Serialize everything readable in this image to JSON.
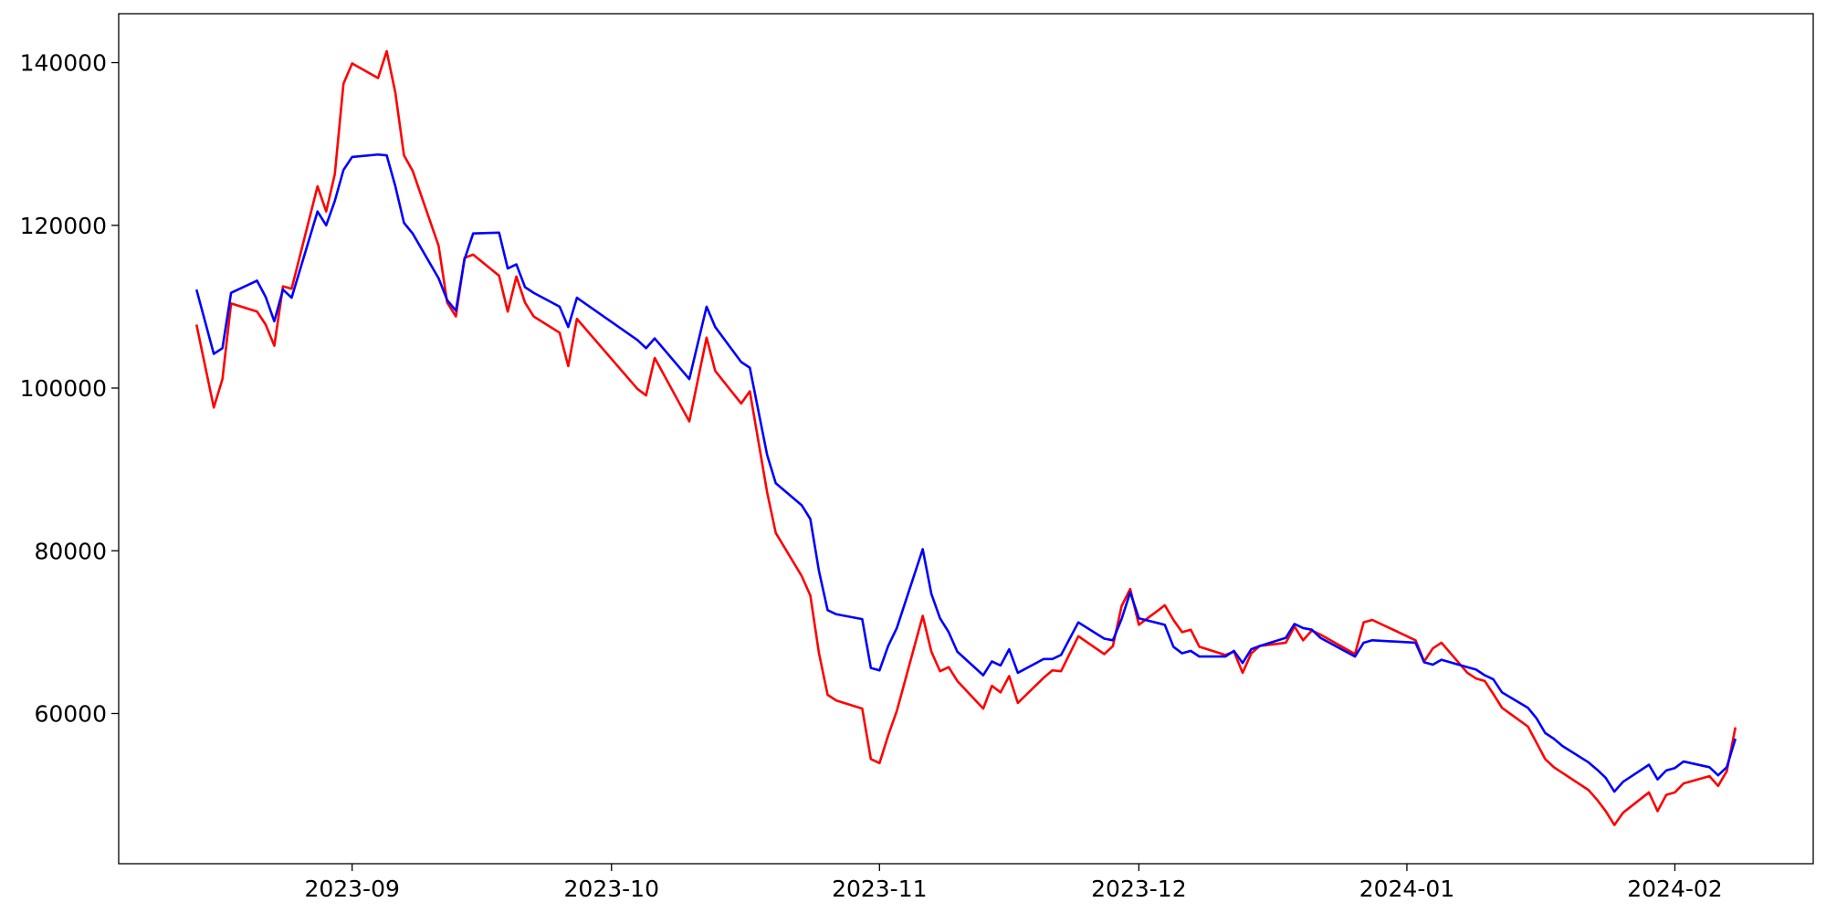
{
  "chart_data": {
    "type": "line",
    "x": [
      "2023-08-14",
      "2023-08-16",
      "2023-08-17",
      "2023-08-18",
      "2023-08-21",
      "2023-08-22",
      "2023-08-23",
      "2023-08-24",
      "2023-08-25",
      "2023-08-28",
      "2023-08-29",
      "2023-08-30",
      "2023-08-31",
      "2023-09-01",
      "2023-09-04",
      "2023-09-05",
      "2023-09-06",
      "2023-09-07",
      "2023-09-08",
      "2023-09-11",
      "2023-09-12",
      "2023-09-13",
      "2023-09-14",
      "2023-09-15",
      "2023-09-18",
      "2023-09-19",
      "2023-09-20",
      "2023-09-21",
      "2023-09-22",
      "2023-09-25",
      "2023-09-26",
      "2023-09-27",
      "2023-10-04",
      "2023-10-05",
      "2023-10-06",
      "2023-10-10",
      "2023-10-12",
      "2023-10-13",
      "2023-10-16",
      "2023-10-17",
      "2023-10-19",
      "2023-10-20",
      "2023-10-23",
      "2023-10-24",
      "2023-10-25",
      "2023-10-26",
      "2023-10-27",
      "2023-10-30",
      "2023-10-31",
      "2023-11-01",
      "2023-11-02",
      "2023-11-03",
      "2023-11-06",
      "2023-11-07",
      "2023-11-08",
      "2023-11-09",
      "2023-11-10",
      "2023-11-13",
      "2023-11-14",
      "2023-11-15",
      "2023-11-16",
      "2023-11-17",
      "2023-11-20",
      "2023-11-21",
      "2023-11-22",
      "2023-11-24",
      "2023-11-27",
      "2023-11-28",
      "2023-11-29",
      "2023-11-30",
      "2023-12-01",
      "2023-12-04",
      "2023-12-05",
      "2023-12-06",
      "2023-12-07",
      "2023-12-08",
      "2023-12-11",
      "2023-12-12",
      "2023-12-13",
      "2023-12-14",
      "2023-12-15",
      "2023-12-18",
      "2023-12-19",
      "2023-12-20",
      "2023-12-21",
      "2023-12-22",
      "2023-12-26",
      "2023-12-27",
      "2023-12-28",
      "2024-01-02",
      "2024-01-03",
      "2024-01-04",
      "2024-01-05",
      "2024-01-08",
      "2024-01-09",
      "2024-01-10",
      "2024-01-11",
      "2024-01-12",
      "2024-01-15",
      "2024-01-16",
      "2024-01-17",
      "2024-01-18",
      "2024-01-19",
      "2024-01-22",
      "2024-01-23",
      "2024-01-24",
      "2024-01-25",
      "2024-01-26",
      "2024-01-29",
      "2024-01-30",
      "2024-01-31",
      "2024-02-01",
      "2024-02-02",
      "2024-02-05",
      "2024-02-06",
      "2024-02-07",
      "2024-02-08"
    ],
    "series": [
      {
        "color": "#ff0000",
        "values": [
          107800,
          97600,
          101100,
          110400,
          109400,
          107800,
          105200,
          112500,
          112200,
          124800,
          121700,
          126300,
          137400,
          139900,
          138100,
          141400,
          136300,
          128600,
          126700,
          117500,
          110500,
          108800,
          116000,
          116400,
          113800,
          109400,
          113700,
          110500,
          108800,
          106800,
          102700,
          108500,
          99900,
          99100,
          103700,
          95900,
          106200,
          102100,
          98100,
          99600,
          87200,
          82200,
          76900,
          74500,
          67400,
          62300,
          61600,
          60600,
          54400,
          53900,
          57300,
          60300,
          72000,
          67600,
          65200,
          65700,
          64000,
          60600,
          63400,
          62600,
          64600,
          61300,
          64400,
          65300,
          65200,
          69500,
          67300,
          68300,
          73200,
          75300,
          70900,
          73300,
          71500,
          70000,
          70300,
          68200,
          67200,
          67600,
          65000,
          67400,
          68300,
          68700,
          70700,
          69000,
          70200,
          69700,
          67300,
          71200,
          71500,
          69000,
          66400,
          68000,
          68700,
          65000,
          64300,
          64000,
          62400,
          60700,
          58400,
          56400,
          54400,
          53400,
          52700,
          50600,
          49400,
          48000,
          46300,
          47800,
          50300,
          48000,
          50000,
          50300,
          51400,
          52300,
          51100,
          52900,
          58300
        ]
      },
      {
        "color": "#0000ff",
        "values": [
          112100,
          104200,
          104900,
          111700,
          113200,
          111200,
          108200,
          112100,
          111100,
          121700,
          120000,
          123000,
          126800,
          128400,
          128700,
          128600,
          124800,
          120300,
          119000,
          113500,
          110800,
          109500,
          115800,
          119000,
          119100,
          114700,
          115200,
          112400,
          111700,
          110000,
          107500,
          111100,
          105900,
          104900,
          106100,
          101100,
          110000,
          107500,
          103200,
          102500,
          91800,
          88300,
          85600,
          83900,
          77500,
          72700,
          72200,
          71600,
          65600,
          65300,
          68300,
          70500,
          80200,
          74700,
          71700,
          70000,
          67600,
          64700,
          66400,
          65900,
          67900,
          65000,
          66700,
          66700,
          67200,
          71200,
          69200,
          69000,
          71600,
          74900,
          71700,
          70900,
          68200,
          67400,
          67700,
          67000,
          67000,
          67700,
          66200,
          67900,
          68300,
          69300,
          71000,
          70500,
          70300,
          69300,
          67000,
          68700,
          69000,
          68700,
          66300,
          66000,
          66600,
          65700,
          65400,
          64700,
          64200,
          62600,
          60700,
          59400,
          57600,
          56900,
          56000,
          54000,
          53100,
          52100,
          50400,
          51600,
          53700,
          51900,
          53000,
          53300,
          54100,
          53400,
          52400,
          53400,
          56900
        ]
      }
    ],
    "xlim": [
      "2023-08-05",
      "2024-02-17"
    ],
    "xticks": [
      "2023-09",
      "2023-10",
      "2023-11",
      "2023-12",
      "2024-01",
      "2024-02"
    ],
    "ylim": [
      41540,
      146010
    ],
    "yticks": [
      60000,
      80000,
      100000,
      120000,
      140000
    ],
    "grid": false
  }
}
